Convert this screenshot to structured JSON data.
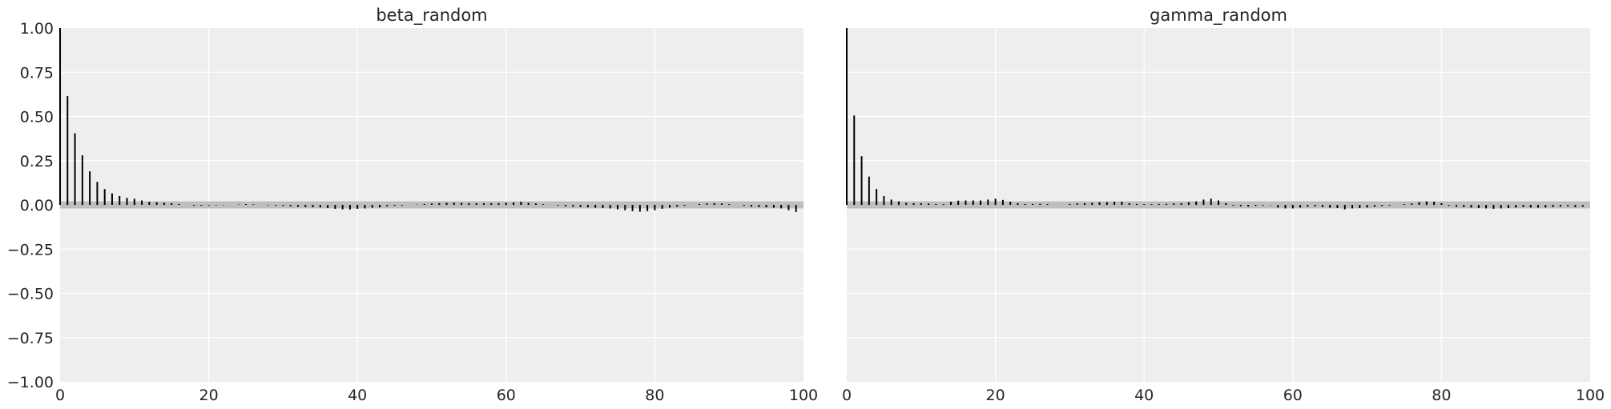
{
  "chart_data": [
    {
      "type": "bar",
      "title": "beta_random",
      "xlim": [
        0,
        100
      ],
      "ylim": [
        -1.0,
        1.0
      ],
      "x_ticks": [
        0,
        20,
        40,
        60,
        80,
        100
      ],
      "x_tick_labels": [
        "0",
        "20",
        "40",
        "60",
        "80",
        "100"
      ],
      "y_ticks": [
        1.0,
        0.75,
        0.5,
        0.25,
        0.0,
        -0.25,
        -0.5,
        -0.75,
        -1.0
      ],
      "y_tick_labels": [
        "1.00",
        "0.75",
        "0.50",
        "0.25",
        "0.00",
        "−0.25",
        "−0.50",
        "−0.75",
        "−1.00"
      ],
      "grid": true,
      "confidence_band": [
        -0.02,
        0.02
      ],
      "lags": [
        0,
        1,
        2,
        3,
        4,
        5,
        6,
        7,
        8,
        9,
        10,
        11,
        12,
        13,
        14,
        15,
        16,
        17,
        18,
        19,
        20,
        21,
        22,
        23,
        24,
        25,
        26,
        27,
        28,
        29,
        30,
        31,
        32,
        33,
        34,
        35,
        36,
        37,
        38,
        39,
        40,
        41,
        42,
        43,
        44,
        45,
        46,
        47,
        48,
        49,
        50,
        51,
        52,
        53,
        54,
        55,
        56,
        57,
        58,
        59,
        60,
        61,
        62,
        63,
        64,
        65,
        66,
        67,
        68,
        69,
        70,
        71,
        72,
        73,
        74,
        75,
        76,
        77,
        78,
        79,
        80,
        81,
        82,
        83,
        84,
        85,
        86,
        87,
        88,
        89,
        90,
        91,
        92,
        93,
        94,
        95,
        96,
        97,
        98,
        99
      ],
      "values": [
        1.0,
        0.615,
        0.405,
        0.28,
        0.19,
        0.13,
        0.09,
        0.065,
        0.05,
        0.04,
        0.035,
        0.025,
        0.018,
        0.015,
        0.012,
        0.01,
        0.005,
        0.0,
        -0.005,
        -0.005,
        -0.004,
        -0.003,
        -0.002,
        0.0,
        0.002,
        0.004,
        0.003,
        0.0,
        -0.003,
        -0.005,
        -0.006,
        -0.008,
        -0.01,
        -0.012,
        -0.013,
        -0.014,
        -0.018,
        -0.022,
        -0.025,
        -0.026,
        -0.022,
        -0.02,
        -0.016,
        -0.014,
        -0.008,
        -0.005,
        -0.004,
        0.0,
        0.002,
        0.005,
        0.008,
        0.01,
        0.012,
        0.013,
        0.012,
        0.01,
        0.01,
        0.01,
        0.01,
        0.01,
        0.012,
        0.014,
        0.018,
        0.012,
        0.008,
        0.004,
        0.0,
        -0.004,
        -0.008,
        -0.01,
        -0.012,
        -0.014,
        -0.016,
        -0.018,
        -0.02,
        -0.025,
        -0.03,
        -0.035,
        -0.038,
        -0.035,
        -0.03,
        -0.022,
        -0.016,
        -0.01,
        -0.005,
        0.0,
        0.005,
        0.008,
        0.01,
        0.008,
        0.004,
        0.0,
        -0.005,
        -0.01,
        -0.012,
        -0.014,
        -0.016,
        -0.02,
        -0.03,
        -0.04
      ]
    },
    {
      "type": "bar",
      "title": "gamma_random",
      "xlim": [
        0,
        100
      ],
      "ylim": [
        -1.0,
        1.0
      ],
      "x_ticks": [
        0,
        20,
        40,
        60,
        80,
        100
      ],
      "x_tick_labels": [
        "0",
        "20",
        "40",
        "60",
        "80",
        "100"
      ],
      "y_ticks": [
        1.0,
        0.75,
        0.5,
        0.25,
        0.0,
        -0.25,
        -0.5,
        -0.75,
        -1.0
      ],
      "y_tick_labels": [
        "",
        "",
        "",
        "",
        "",
        "",
        "",
        "",
        ""
      ],
      "grid": true,
      "confidence_band": [
        -0.02,
        0.02
      ],
      "lags": [
        0,
        1,
        2,
        3,
        4,
        5,
        6,
        7,
        8,
        9,
        10,
        11,
        12,
        13,
        14,
        15,
        16,
        17,
        18,
        19,
        20,
        21,
        22,
        23,
        24,
        25,
        26,
        27,
        28,
        29,
        30,
        31,
        32,
        33,
        34,
        35,
        36,
        37,
        38,
        39,
        40,
        41,
        42,
        43,
        44,
        45,
        46,
        47,
        48,
        49,
        50,
        51,
        52,
        53,
        54,
        55,
        56,
        57,
        58,
        59,
        60,
        61,
        62,
        63,
        64,
        65,
        66,
        67,
        68,
        69,
        70,
        71,
        72,
        73,
        74,
        75,
        76,
        77,
        78,
        79,
        80,
        81,
        82,
        83,
        84,
        85,
        86,
        87,
        88,
        89,
        90,
        91,
        92,
        93,
        94,
        95,
        96,
        97,
        98,
        99
      ],
      "values": [
        1.0,
        0.505,
        0.275,
        0.16,
        0.09,
        0.05,
        0.03,
        0.02,
        0.012,
        0.01,
        0.01,
        0.008,
        0.005,
        0.004,
        0.018,
        0.024,
        0.025,
        0.025,
        0.025,
        0.03,
        0.035,
        0.028,
        0.018,
        0.01,
        0.005,
        0.005,
        0.006,
        0.004,
        0.0,
        0.0,
        0.005,
        0.008,
        0.01,
        0.012,
        0.015,
        0.016,
        0.018,
        0.018,
        0.01,
        0.005,
        0.004,
        0.004,
        0.005,
        0.006,
        0.008,
        0.01,
        0.015,
        0.02,
        0.03,
        0.035,
        0.025,
        0.01,
        -0.005,
        -0.008,
        -0.01,
        -0.006,
        -0.004,
        -0.002,
        -0.015,
        -0.02,
        -0.02,
        -0.015,
        -0.01,
        -0.008,
        -0.012,
        -0.016,
        -0.018,
        -0.025,
        -0.02,
        -0.018,
        -0.015,
        -0.01,
        -0.006,
        -0.004,
        0.0,
        0.004,
        0.008,
        0.015,
        0.02,
        0.018,
        0.01,
        -0.005,
        -0.01,
        -0.012,
        -0.015,
        -0.018,
        -0.02,
        -0.022,
        -0.02,
        -0.018,
        -0.015,
        -0.012,
        -0.015,
        -0.016,
        -0.015,
        -0.012,
        -0.01,
        -0.008,
        -0.012,
        -0.01
      ]
    }
  ]
}
